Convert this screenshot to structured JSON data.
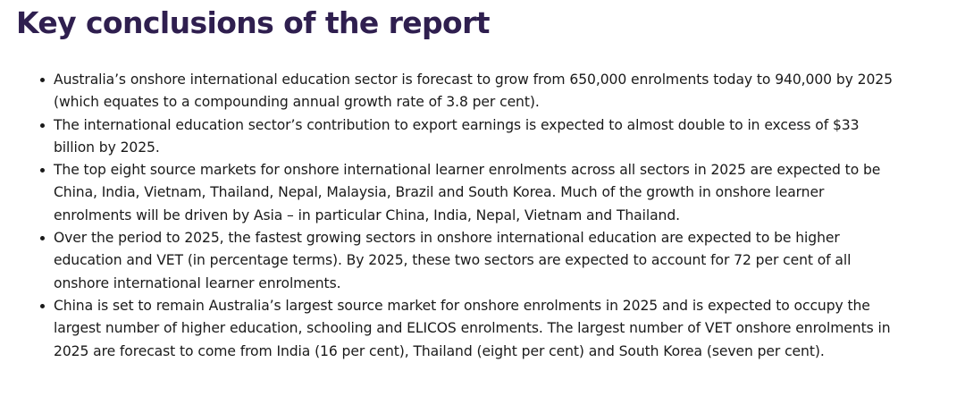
{
  "report": {
    "heading": "Key conclusions of the report",
    "bullets": [
      "Australia’s onshore international education sector is forecast to grow from 650,000 enrolments today to 940,000 by 2025 (which equates to a compounding annual growth rate of 3.8 per cent).",
      "The international education sector’s contribution to export earnings is expected to almost double to in excess of $33 billion by 2025.",
      "The top eight source markets for onshore international learner enrolments across all sectors in 2025 are expected to be China, India, Vietnam, Thailand, Nepal, Malaysia, Brazil and South Korea. Much of the growth in onshore learner enrolments will be driven by Asia – in particular China, India, Nepal, Vietnam and Thailand.",
      "Over the period to 2025, the fastest growing sectors in onshore international education are expected to be higher education and VET (in percentage terms). By 2025, these two sectors are expected to account for 72 per cent of all onshore international learner enrolments.",
      "China is set to remain Australia’s largest source market for onshore enrolments in 2025 and is expected to occupy the largest number of higher education, schooling and ELICOS enrolments. The largest number of VET onshore enrolments in 2025 are forecast to come from India (16 per cent), Thailand (eight per cent) and South Korea (seven per cent)."
    ]
  },
  "colors": {
    "heading": "#2f1f4f",
    "body_text": "#1a1a1a",
    "background": "#ffffff"
  }
}
